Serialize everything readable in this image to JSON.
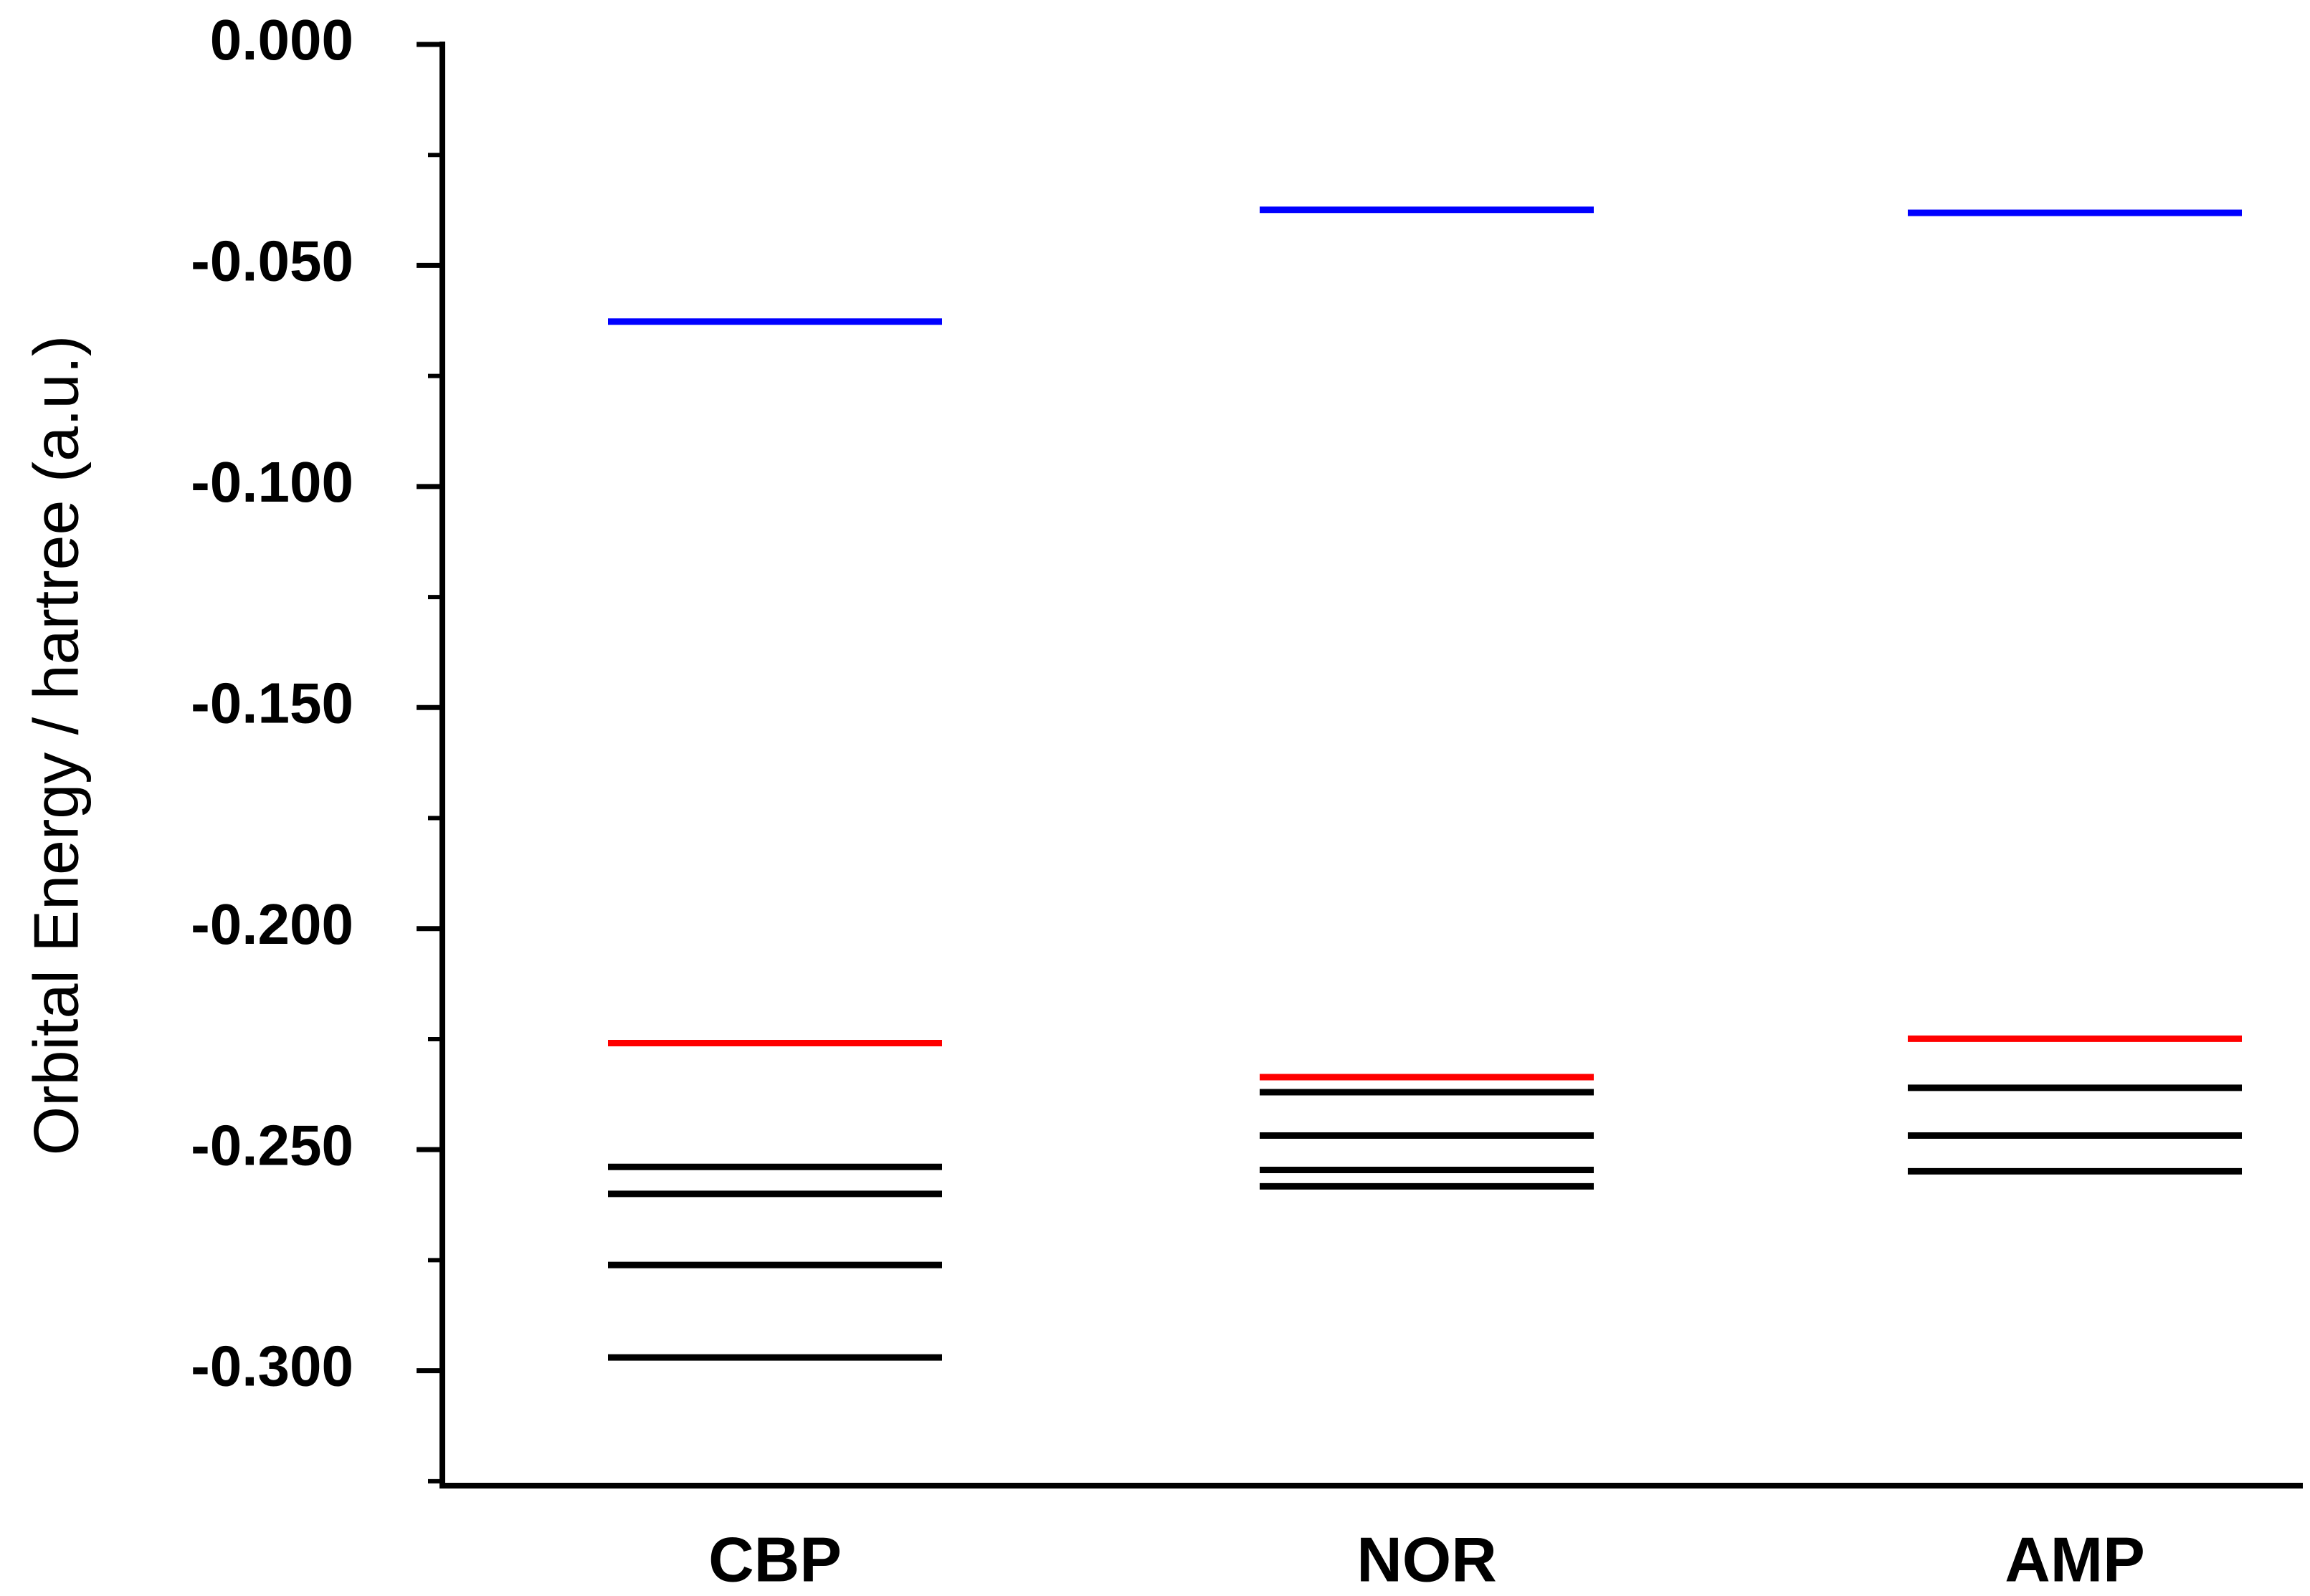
{
  "chart_data": {
    "type": "energy_level",
    "y_label": "Orbital Energy / hartree (a.u.)",
    "categories": [
      "CBP",
      "NOR",
      "AMP"
    ],
    "series": [
      {
        "color": "#0000ff",
        "values": [
          -0.0627,
          -0.0374,
          -0.0381
        ]
      },
      {
        "color": "#ff0000",
        "values": [
          -0.2259,
          -0.2336,
          -0.2249
        ]
      },
      {
        "color": "#000000",
        "values": [
          -0.2539,
          -0.237,
          -0.236
        ]
      },
      {
        "color": "#000000",
        "values": [
          -0.26,
          -0.2468,
          -0.2468
        ]
      },
      {
        "color": "#000000",
        "values": [
          -0.2761,
          -0.2546,
          -0.2549
        ]
      },
      {
        "color": "#000000",
        "values": [
          -0.297,
          -0.2583,
          null
        ]
      }
    ],
    "ylim": [
      -0.326,
      0
    ],
    "yticks": [
      {
        "value": 0,
        "label": "0.000"
      },
      {
        "value": -0.05,
        "label": "-0.050"
      },
      {
        "value": -0.1,
        "label": "-0.100"
      },
      {
        "value": -0.15,
        "label": "-0.150"
      },
      {
        "value": -0.2,
        "label": "-0.200"
      },
      {
        "value": -0.25,
        "label": "-0.250"
      },
      {
        "value": -0.3,
        "label": "-0.300"
      }
    ],
    "yminor": [
      -0.025,
      -0.075,
      -0.125,
      -0.175,
      -0.225,
      -0.275,
      -0.325
    ]
  }
}
